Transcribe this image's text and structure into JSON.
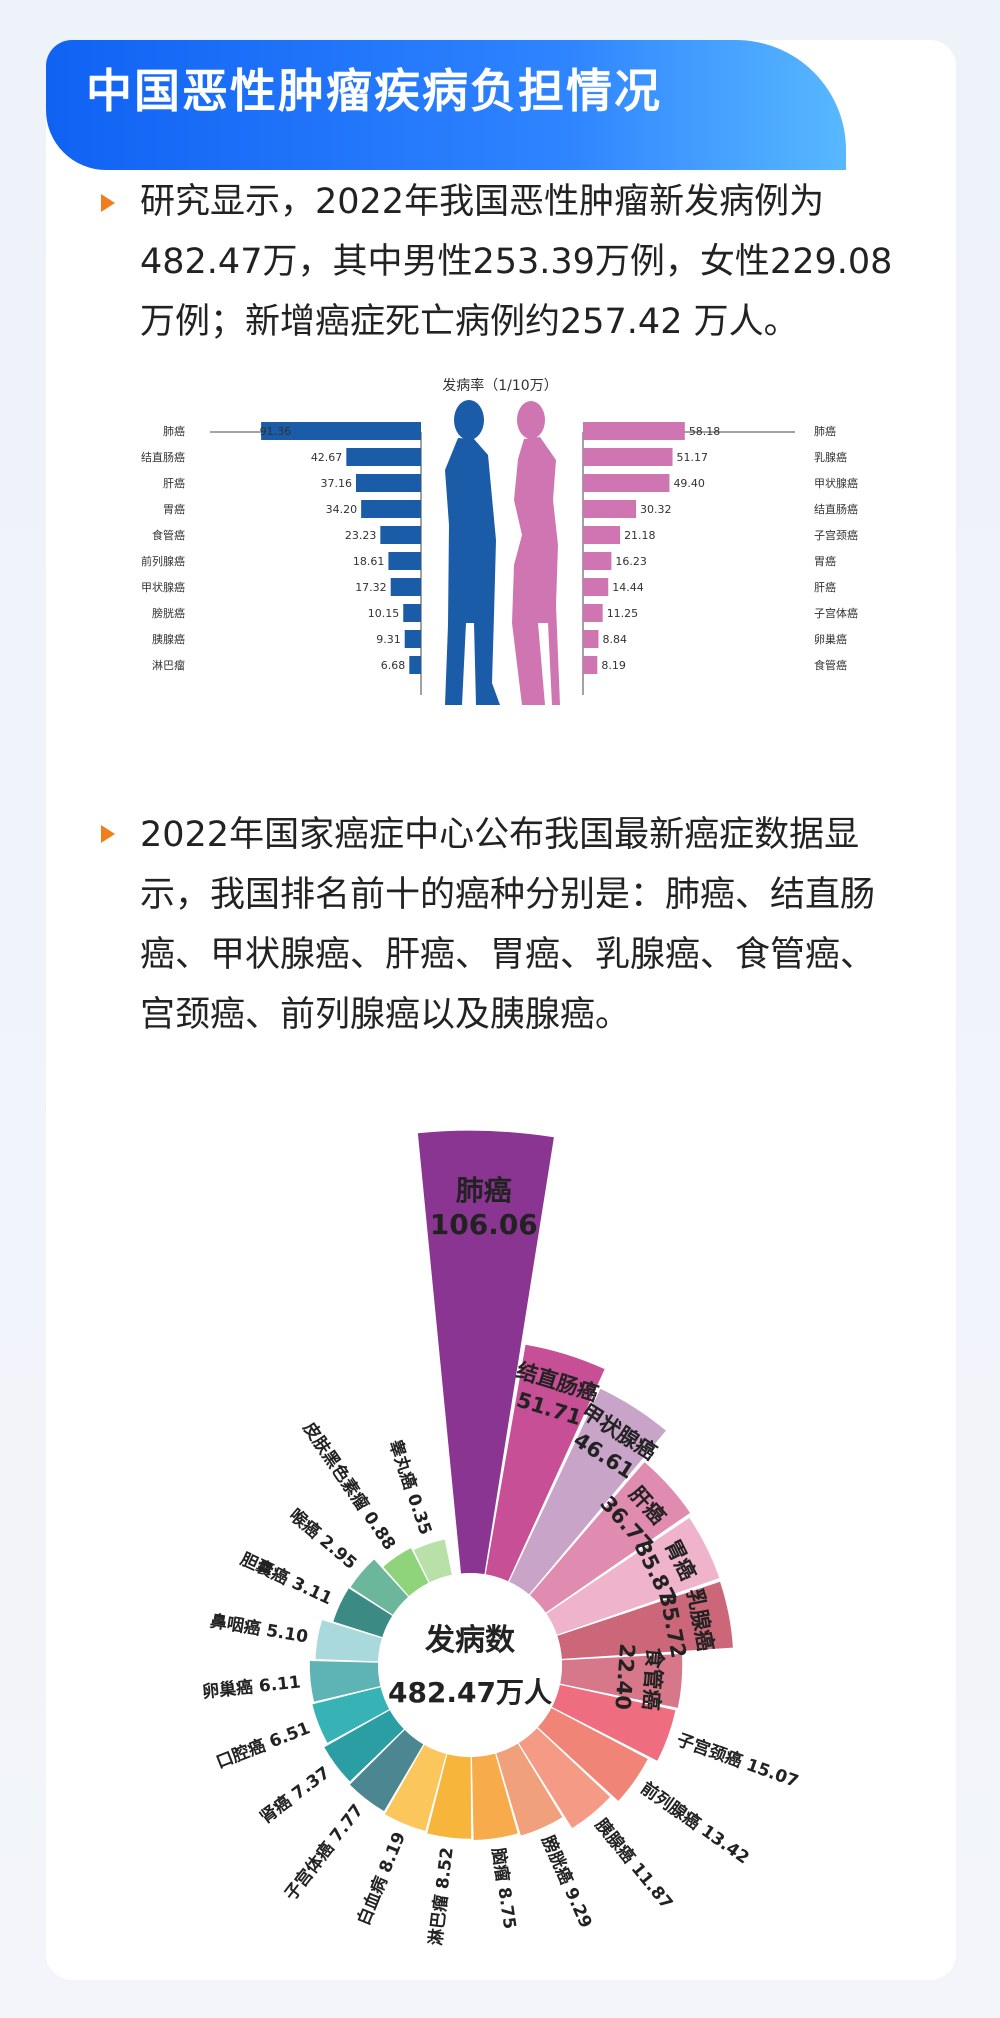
{
  "title": "中国恶性肿瘤疾病负担情况",
  "paragraphs": [
    {
      "text": "研究显示，2022年我国恶性肿瘤新发病例为482.47万，其中男性253.39万例，女性229.08万例；新增癌症死亡病例约257.42 万人。"
    },
    {
      "text": "2022年国家癌症中心公布我国最新癌症数据显示，我国排名前十的癌种分别是：肺癌、结直肠癌、甲状腺癌、肝癌、胃癌、乳腺癌、食管癌、宫颈癌、前列腺癌以及胰腺癌。"
    }
  ],
  "colors": {
    "accent": "#1062f3",
    "bullet": "#f07f1b",
    "male": "#1a5ca8",
    "female": "#cf75b1"
  },
  "chart_data": [
    {
      "type": "bar",
      "title": "发病率（1/10万）",
      "series": [
        {
          "categories": [
            "肺癌",
            "结直肠癌",
            "肝癌",
            "胃癌",
            "食管癌",
            "前列腺癌",
            "甲状腺癌",
            "膀胱癌",
            "胰腺癌",
            "淋巴瘤"
          ],
          "values": [
            91.36,
            42.67,
            37.16,
            34.2,
            23.23,
            18.61,
            17.32,
            10.15,
            9.31,
            6.68
          ],
          "value_labels": [
            "91.36",
            "42.67",
            "37.16",
            "34.20",
            "23.23",
            "18.61",
            "17.32",
            "10.15",
            "9.31",
            "6.68"
          ],
          "color": "#1a5ca8",
          "figure": "male-silhouette-icon"
        },
        {
          "categories": [
            "肺癌",
            "乳腺癌",
            "甲状腺癌",
            "结直肠癌",
            "子宫颈癌",
            "胃癌",
            "肝癌",
            "子宫体癌",
            "卵巢癌",
            "食管癌"
          ],
          "values": [
            58.18,
            51.17,
            49.4,
            30.32,
            21.18,
            16.23,
            14.44,
            11.25,
            8.84,
            8.19
          ],
          "value_labels": [
            "58.18",
            "51.17",
            "49.40",
            "30.32",
            "21.18",
            "16.23",
            "14.44",
            "11.25",
            "8.84",
            "8.19"
          ],
          "color": "#cf75b1",
          "figure": "female-silhouette-icon"
        }
      ]
    },
    {
      "type": "pie",
      "center_label": "发病数",
      "center_value": "482.47万人",
      "slices": [
        {
          "name": "肺癌",
          "value": 106.06,
          "label": "106.06",
          "color": "#8a3591"
        },
        {
          "name": "结直肠癌",
          "value": 51.71,
          "label": "51.71",
          "color": "#c74f95"
        },
        {
          "name": "甲状腺癌",
          "value": 46.61,
          "label": "46.61",
          "color": "#c9a4c9"
        },
        {
          "name": "肝癌",
          "value": 36.77,
          "label": "36.77",
          "color": "#e08bb0"
        },
        {
          "name": "胃癌",
          "value": 35.87,
          "label": "35.87",
          "color": "#f0b3cc"
        },
        {
          "name": "乳腺癌",
          "value": 35.72,
          "label": "35.72",
          "color": "#cc6779"
        },
        {
          "name": "食管癌",
          "value": 22.4,
          "label": "22.40",
          "color": "#d7788a"
        },
        {
          "name": "子宫颈癌",
          "value": 15.07,
          "label": "15.07",
          "color": "#ee6d7f"
        },
        {
          "name": "前列腺癌",
          "value": 13.42,
          "label": "13.42",
          "color": "#f08577"
        },
        {
          "name": "胰腺癌",
          "value": 11.87,
          "label": "11.87",
          "color": "#f59a85"
        },
        {
          "name": "膀胱癌",
          "value": 9.29,
          "label": "9.29",
          "color": "#f1a07c"
        },
        {
          "name": "脑瘤",
          "value": 8.75,
          "label": "8.75",
          "color": "#f8ab4b"
        },
        {
          "name": "淋巴瘤",
          "value": 8.52,
          "label": "8.52",
          "color": "#f7b53c"
        },
        {
          "name": "白血病",
          "value": 8.19,
          "label": "8.19",
          "color": "#fbc65c"
        },
        {
          "name": "子宫体癌",
          "value": 7.77,
          "label": "7.77",
          "color": "#4c8690"
        },
        {
          "name": "肾癌",
          "value": 7.37,
          "label": "7.37",
          "color": "#2b9ea3"
        },
        {
          "name": "口腔癌",
          "value": 6.51,
          "label": "6.51",
          "color": "#37b2b5"
        },
        {
          "name": "卵巢癌",
          "value": 6.11,
          "label": "6.11",
          "color": "#5eb4b4"
        },
        {
          "name": "鼻咽癌",
          "value": 5.1,
          "label": "5.10",
          "color": "#a9d9dc"
        },
        {
          "name": "胆囊癌",
          "value": 3.11,
          "label": "3.11",
          "color": "#3c8a84"
        },
        {
          "name": "喉癌",
          "value": 2.95,
          "label": "2.95",
          "color": "#6cb79b"
        },
        {
          "name": "皮肤黑色素瘤",
          "value": 0.88,
          "label": "0.88",
          "color": "#8fd37a"
        },
        {
          "name": "睾丸癌",
          "value": 0.35,
          "label": "0.35",
          "color": "#b8e0a8"
        }
      ]
    }
  ]
}
